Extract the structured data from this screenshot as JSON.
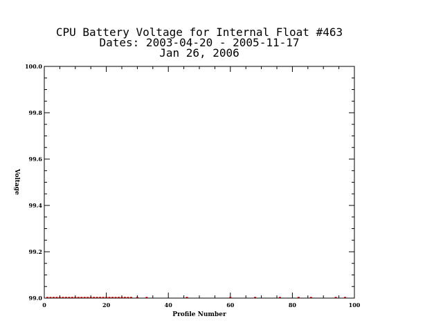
{
  "chart_data": {
    "type": "scatter",
    "title_lines": [
      "CPU Battery Voltage for Internal Float #463",
      "Dates:  2003-04-20 -  2005-11-17",
      "Jan 26, 2006"
    ],
    "xlabel": "Profile Number",
    "ylabel": "Voltage",
    "xlim": [
      0,
      100
    ],
    "ylim": [
      99.0,
      100.0
    ],
    "x_ticks": [
      0,
      20,
      40,
      60,
      80,
      100
    ],
    "x_tick_labels": [
      "0",
      "20",
      "40",
      "60",
      "80",
      "100"
    ],
    "y_ticks": [
      99.0,
      99.2,
      99.4,
      99.6,
      99.8,
      100.0
    ],
    "y_tick_labels": [
      "99.0",
      "99.2",
      "99.4",
      "99.6",
      "99.8",
      "100.0"
    ],
    "grid": false,
    "series": [
      {
        "color": "#cc0000",
        "x": [
          1,
          2,
          3,
          4,
          5,
          6,
          7,
          8,
          9,
          10,
          11,
          12,
          13,
          14,
          15,
          16,
          17,
          18,
          19,
          20,
          21,
          22,
          23,
          24,
          25,
          26,
          27,
          28,
          30,
          33,
          46,
          60,
          68,
          76,
          82,
          86,
          94,
          97
        ],
        "y": [
          99.0,
          99.0,
          99.0,
          99.0,
          99.0,
          99.0,
          99.0,
          99.0,
          99.0,
          99.0,
          99.0,
          99.0,
          99.0,
          99.0,
          99.0,
          99.0,
          99.0,
          99.0,
          99.0,
          99.0,
          99.0,
          99.0,
          99.0,
          99.0,
          99.0,
          99.0,
          99.0,
          99.0,
          99.0,
          99.0,
          99.0,
          99.0,
          99.0,
          99.0,
          99.0,
          99.0,
          99.0,
          99.0
        ]
      }
    ]
  }
}
